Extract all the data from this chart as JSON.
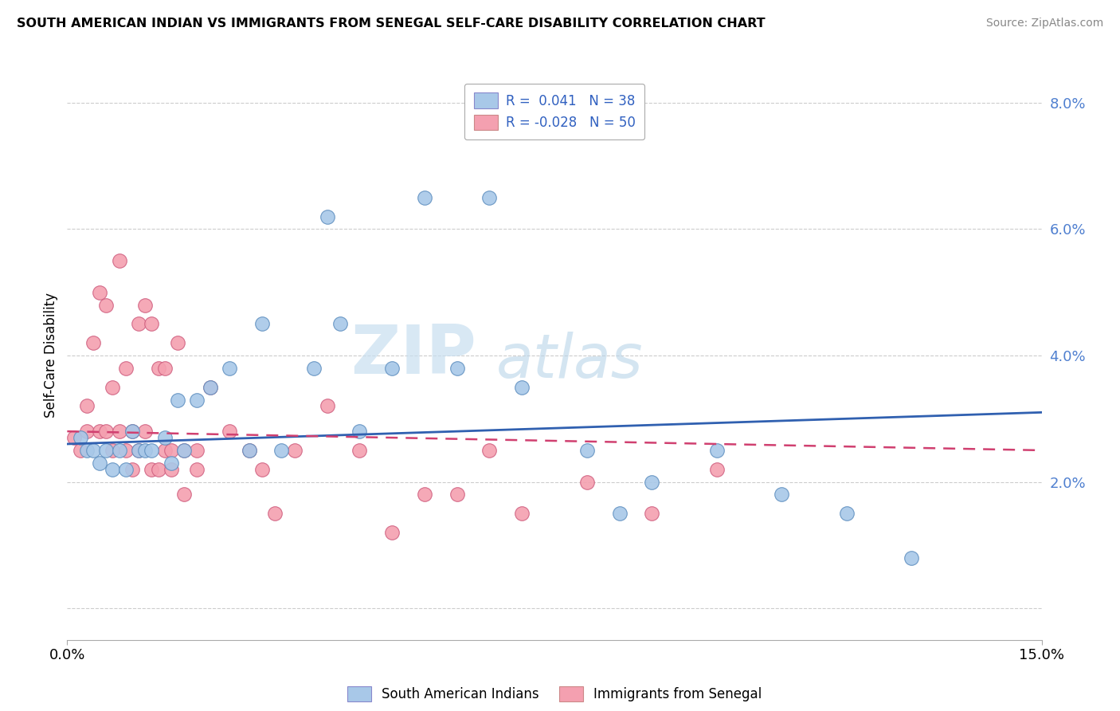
{
  "title": "SOUTH AMERICAN INDIAN VS IMMIGRANTS FROM SENEGAL SELF-CARE DISABILITY CORRELATION CHART",
  "source": "Source: ZipAtlas.com",
  "ylabel": "Self-Care Disability",
  "xlim": [
    0.0,
    0.15
  ],
  "ylim": [
    -0.005,
    0.085
  ],
  "yticks": [
    0.0,
    0.02,
    0.04,
    0.06,
    0.08
  ],
  "ytick_labels": [
    "",
    "2.0%",
    "4.0%",
    "6.0%",
    "8.0%"
  ],
  "xtick_labels": [
    "0.0%",
    "15.0%"
  ],
  "legend_label_blue": "South American Indians",
  "legend_label_pink": "Immigrants from Senegal",
  "blue_color": "#a8c8e8",
  "pink_color": "#f4a0b0",
  "blue_edge_color": "#6090c0",
  "pink_edge_color": "#d06080",
  "blue_line_color": "#3060b0",
  "pink_line_color": "#d04070",
  "watermark_zip": "ZIP",
  "watermark_atlas": "atlas",
  "blue_R": "0.041",
  "blue_N": "38",
  "pink_R": "-0.028",
  "pink_N": "50",
  "blue_scatter_x": [
    0.002,
    0.003,
    0.004,
    0.005,
    0.006,
    0.007,
    0.008,
    0.009,
    0.01,
    0.011,
    0.012,
    0.013,
    0.015,
    0.016,
    0.017,
    0.018,
    0.02,
    0.022,
    0.025,
    0.028,
    0.03,
    0.033,
    0.038,
    0.04,
    0.042,
    0.045,
    0.05,
    0.055,
    0.06,
    0.065,
    0.07,
    0.08,
    0.085,
    0.09,
    0.1,
    0.11,
    0.12,
    0.13
  ],
  "blue_scatter_y": [
    0.027,
    0.025,
    0.025,
    0.023,
    0.025,
    0.022,
    0.025,
    0.022,
    0.028,
    0.025,
    0.025,
    0.025,
    0.027,
    0.023,
    0.033,
    0.025,
    0.033,
    0.035,
    0.038,
    0.025,
    0.045,
    0.025,
    0.038,
    0.062,
    0.045,
    0.028,
    0.038,
    0.065,
    0.038,
    0.065,
    0.035,
    0.025,
    0.015,
    0.02,
    0.025,
    0.018,
    0.015,
    0.008
  ],
  "pink_scatter_x": [
    0.001,
    0.002,
    0.003,
    0.003,
    0.004,
    0.005,
    0.005,
    0.006,
    0.006,
    0.007,
    0.007,
    0.008,
    0.008,
    0.009,
    0.009,
    0.01,
    0.01,
    0.011,
    0.011,
    0.012,
    0.012,
    0.013,
    0.013,
    0.014,
    0.014,
    0.015,
    0.015,
    0.016,
    0.016,
    0.017,
    0.018,
    0.018,
    0.02,
    0.02,
    0.022,
    0.025,
    0.028,
    0.03,
    0.032,
    0.035,
    0.04,
    0.045,
    0.05,
    0.055,
    0.06,
    0.065,
    0.07,
    0.08,
    0.09,
    0.1
  ],
  "pink_scatter_y": [
    0.027,
    0.025,
    0.032,
    0.028,
    0.042,
    0.05,
    0.028,
    0.048,
    0.028,
    0.035,
    0.025,
    0.055,
    0.028,
    0.038,
    0.025,
    0.028,
    0.022,
    0.045,
    0.025,
    0.048,
    0.028,
    0.045,
    0.022,
    0.038,
    0.022,
    0.038,
    0.025,
    0.025,
    0.022,
    0.042,
    0.025,
    0.018,
    0.025,
    0.022,
    0.035,
    0.028,
    0.025,
    0.022,
    0.015,
    0.025,
    0.032,
    0.025,
    0.012,
    0.018,
    0.018,
    0.025,
    0.015,
    0.02,
    0.015,
    0.022
  ]
}
